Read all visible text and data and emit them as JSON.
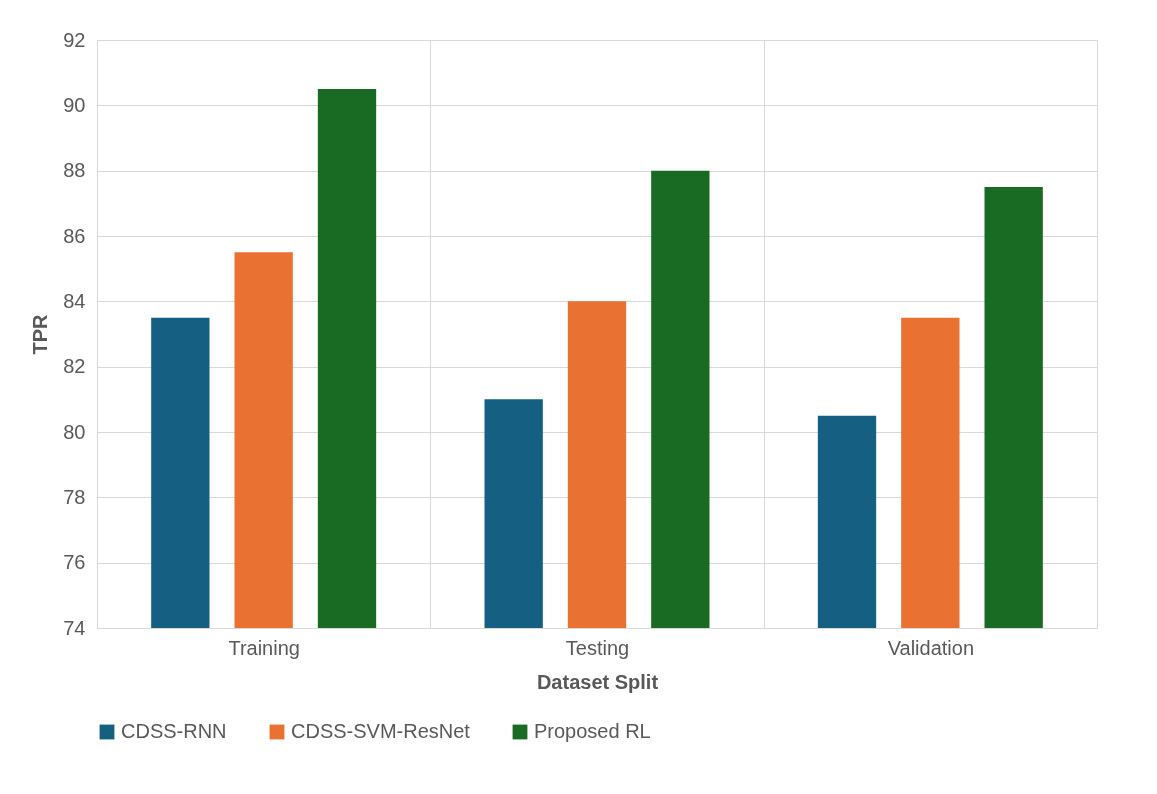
{
  "chart_data": {
    "type": "bar",
    "xlabel": "Dataset Split",
    "ylabel": "TPR",
    "categories": [
      "Training",
      "Testing",
      "Validation"
    ],
    "series": [
      {
        "name": "CDSS-RNN",
        "color": "#156082",
        "values": [
          83.5,
          81,
          80.5
        ]
      },
      {
        "name": "CDSS-SVM-ResNet",
        "color": "#e97132",
        "values": [
          85.5,
          84,
          83.5
        ]
      },
      {
        "name": "Proposed RL",
        "color": "#196b24",
        "values": [
          90.5,
          88,
          87.5
        ]
      }
    ],
    "ylim": [
      74,
      92
    ],
    "yticks": [
      74,
      76,
      78,
      80,
      82,
      84,
      86,
      88,
      90,
      92
    ],
    "grid": true,
    "legend": "bottom"
  }
}
